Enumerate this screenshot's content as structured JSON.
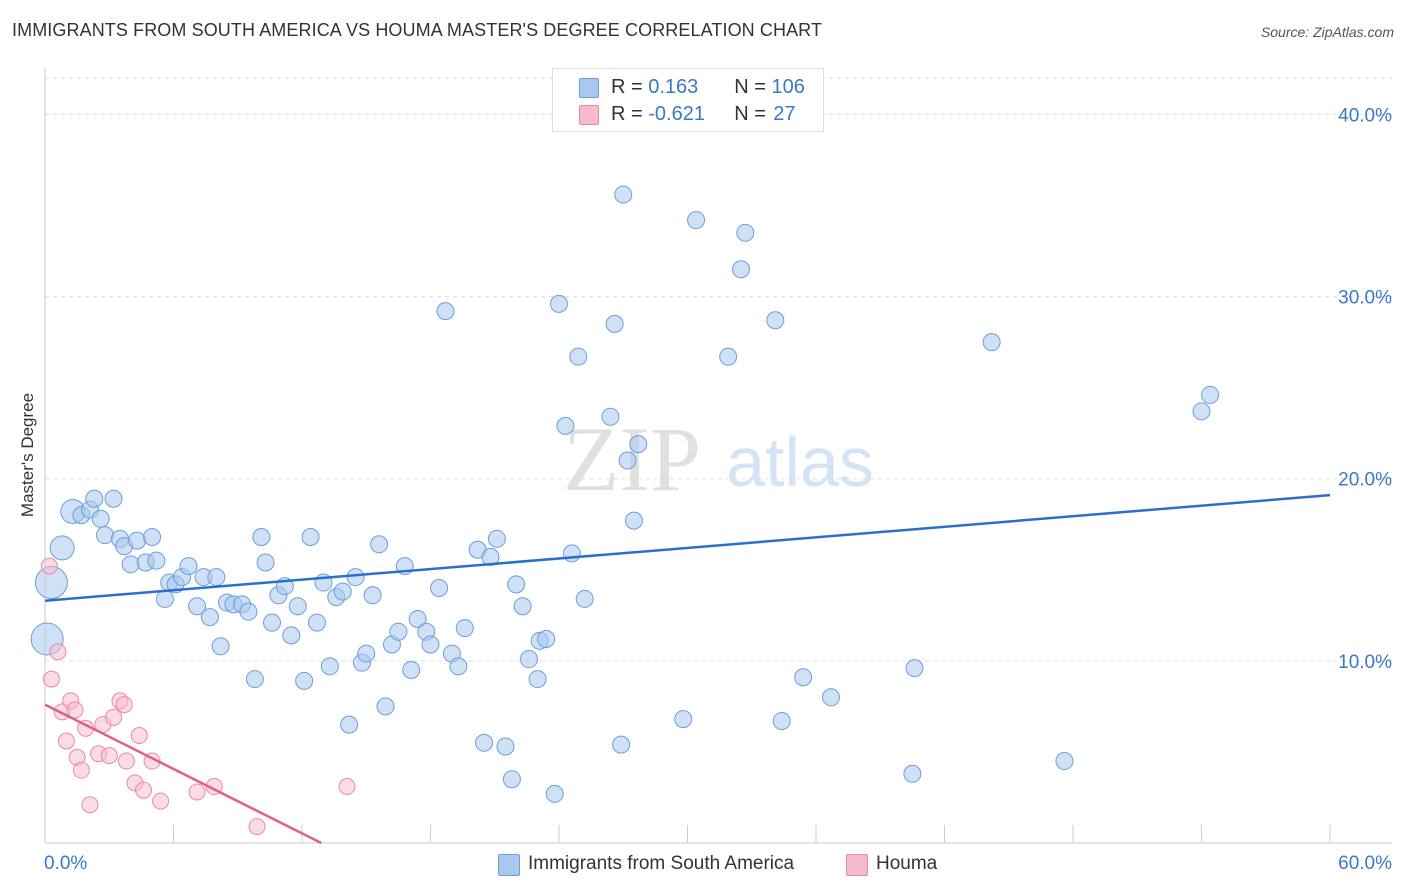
{
  "title": "IMMIGRANTS FROM SOUTH AMERICA VS HOUMA MASTER'S DEGREE CORRELATION CHART",
  "source": "Source: ZipAtlas.com",
  "watermark": "ZIPatlas",
  "legend": [
    {
      "r_label": "R = ",
      "r_value": "0.163",
      "n_label": "N = ",
      "n_value": "106"
    },
    {
      "r_label": "R = ",
      "r_value": "-0.621",
      "n_label": "N = ",
      "n_value": "27"
    }
  ],
  "colors": {
    "blue_fill": "#a9c8ef",
    "blue_stroke": "#6a9fdc",
    "blue_line": "#2a6fcf",
    "pink_fill": "#f7b9cc",
    "pink_stroke": "#e88aa8",
    "pink_line": "#e0608c",
    "axis_text": "#3a78c8",
    "grid": "#dddddd"
  },
  "chart_data": {
    "type": "scatter",
    "title": "IMMIGRANTS FROM SOUTH AMERICA VS HOUMA MASTER'S DEGREE CORRELATION CHART",
    "xlabel": "",
    "ylabel": "Master's Degree",
    "xlim": [
      0,
      60
    ],
    "ylim": [
      0,
      42
    ],
    "x_tick_labels": [
      "0.0%",
      "60.0%"
    ],
    "y_ticks": [
      10,
      20,
      30,
      40
    ],
    "y_tick_labels": [
      "10.0%",
      "20.0%",
      "30.0%",
      "40.0%"
    ],
    "grid": "horizontal dashed",
    "legend_position": "top-center",
    "series": [
      {
        "name": "Immigrants from South America",
        "R": 0.163,
        "N": 106,
        "trend": {
          "x": [
            0,
            60
          ],
          "y": [
            13.3,
            19.1
          ]
        },
        "points": [
          [
            0.3,
            14.3,
            3
          ],
          [
            0.1,
            11.2,
            3
          ],
          [
            0.8,
            16.2,
            2
          ],
          [
            1.3,
            18.2,
            2
          ],
          [
            1.7,
            18.0,
            1
          ],
          [
            2.1,
            18.3,
            1
          ],
          [
            2.3,
            18.9,
            1
          ],
          [
            2.6,
            17.8,
            1
          ],
          [
            2.8,
            16.9,
            1
          ],
          [
            3.2,
            18.9,
            1
          ],
          [
            3.5,
            16.7,
            1
          ],
          [
            3.7,
            16.3,
            1
          ],
          [
            4.0,
            15.3,
            1
          ],
          [
            4.3,
            16.6,
            1
          ],
          [
            4.7,
            15.4,
            1
          ],
          [
            5.0,
            16.8,
            1
          ],
          [
            5.2,
            15.5,
            1
          ],
          [
            5.6,
            13.4,
            1
          ],
          [
            5.8,
            14.3,
            1
          ],
          [
            6.1,
            14.2,
            1
          ],
          [
            6.4,
            14.6,
            1
          ],
          [
            6.7,
            15.2,
            1
          ],
          [
            7.1,
            13.0,
            1
          ],
          [
            7.4,
            14.6,
            1
          ],
          [
            7.7,
            12.4,
            1
          ],
          [
            8.0,
            14.6,
            1
          ],
          [
            8.2,
            10.8,
            1
          ],
          [
            8.5,
            13.2,
            1
          ],
          [
            8.8,
            13.1,
            1
          ],
          [
            9.2,
            13.1,
            1
          ],
          [
            9.5,
            12.7,
            1
          ],
          [
            9.8,
            9.0,
            1
          ],
          [
            10.1,
            16.8,
            1
          ],
          [
            10.3,
            15.4,
            1
          ],
          [
            10.6,
            12.1,
            1
          ],
          [
            10.9,
            13.6,
            1
          ],
          [
            11.2,
            14.1,
            1
          ],
          [
            11.5,
            11.4,
            1
          ],
          [
            11.8,
            13.0,
            1
          ],
          [
            12.1,
            8.9,
            1
          ],
          [
            12.4,
            16.8,
            1
          ],
          [
            12.7,
            12.1,
            1
          ],
          [
            13.0,
            14.3,
            1
          ],
          [
            13.3,
            9.7,
            1
          ],
          [
            13.6,
            13.5,
            1
          ],
          [
            13.9,
            13.8,
            1
          ],
          [
            14.2,
            6.5,
            1
          ],
          [
            14.5,
            14.6,
            1
          ],
          [
            14.8,
            9.9,
            1
          ],
          [
            15.0,
            10.4,
            1
          ],
          [
            15.3,
            13.6,
            1
          ],
          [
            15.6,
            16.4,
            1
          ],
          [
            15.9,
            7.5,
            1
          ],
          [
            16.2,
            10.9,
            1
          ],
          [
            16.5,
            11.6,
            1
          ],
          [
            16.8,
            15.2,
            1
          ],
          [
            17.1,
            9.5,
            1
          ],
          [
            17.4,
            12.3,
            1
          ],
          [
            17.8,
            11.6,
            1
          ],
          [
            18.0,
            10.9,
            1
          ],
          [
            18.4,
            14.0,
            1
          ],
          [
            18.7,
            29.2,
            1
          ],
          [
            19.0,
            10.4,
            1
          ],
          [
            19.3,
            9.7,
            1
          ],
          [
            19.6,
            11.8,
            1
          ],
          [
            20.2,
            16.1,
            1
          ],
          [
            20.5,
            5.5,
            1
          ],
          [
            20.8,
            15.7,
            1
          ],
          [
            21.1,
            16.7,
            1
          ],
          [
            21.5,
            5.3,
            1
          ],
          [
            21.8,
            3.5,
            1
          ],
          [
            22.0,
            14.2,
            1
          ],
          [
            22.3,
            13.0,
            1
          ],
          [
            22.6,
            10.1,
            1
          ],
          [
            23.0,
            9.0,
            1
          ],
          [
            23.1,
            11.1,
            1
          ],
          [
            23.4,
            11.2,
            1
          ],
          [
            23.8,
            2.7,
            1
          ],
          [
            24.0,
            29.6,
            1
          ],
          [
            24.3,
            22.9,
            1
          ],
          [
            24.6,
            15.9,
            1
          ],
          [
            24.9,
            26.7,
            1
          ],
          [
            25.2,
            13.4,
            1
          ],
          [
            26.4,
            23.4,
            1
          ],
          [
            26.6,
            28.5,
            1
          ],
          [
            26.9,
            5.4,
            1
          ],
          [
            27.0,
            35.6,
            1
          ],
          [
            27.2,
            21.0,
            1
          ],
          [
            27.5,
            17.7,
            1
          ],
          [
            27.7,
            21.9,
            1
          ],
          [
            29.8,
            6.8,
            1
          ],
          [
            30.4,
            34.2,
            1
          ],
          [
            31.9,
            26.7,
            1
          ],
          [
            32.5,
            31.5,
            1
          ],
          [
            32.7,
            33.5,
            1
          ],
          [
            34.1,
            28.7,
            1
          ],
          [
            34.4,
            6.7,
            1
          ],
          [
            35.4,
            9.1,
            1
          ],
          [
            36.7,
            8.0,
            1
          ],
          [
            40.5,
            3.8,
            1
          ],
          [
            40.6,
            9.6,
            1
          ],
          [
            44.2,
            27.5,
            1
          ],
          [
            47.6,
            4.5,
            1
          ],
          [
            54.0,
            23.7,
            1
          ],
          [
            54.4,
            24.6,
            1
          ]
        ]
      },
      {
        "name": "Houma",
        "R": -0.621,
        "N": 27,
        "trend": {
          "x": [
            0,
            12.9
          ],
          "y": [
            7.6,
            0
          ]
        },
        "points": [
          [
            0.2,
            15.2
          ],
          [
            0.3,
            9.0
          ],
          [
            0.6,
            10.5
          ],
          [
            0.8,
            7.2
          ],
          [
            1.0,
            5.6
          ],
          [
            1.2,
            7.8
          ],
          [
            1.4,
            7.3
          ],
          [
            1.5,
            4.7
          ],
          [
            1.7,
            4.0
          ],
          [
            1.9,
            6.3
          ],
          [
            2.1,
            2.1
          ],
          [
            2.5,
            4.9
          ],
          [
            2.7,
            6.5
          ],
          [
            3.0,
            4.8
          ],
          [
            3.2,
            6.9
          ],
          [
            3.5,
            7.8
          ],
          [
            3.7,
            7.6
          ],
          [
            3.8,
            4.5
          ],
          [
            4.2,
            3.3
          ],
          [
            4.4,
            5.9
          ],
          [
            4.6,
            2.9
          ],
          [
            5.0,
            4.5
          ],
          [
            5.4,
            2.3
          ],
          [
            7.1,
            2.8
          ],
          [
            7.9,
            3.1
          ],
          [
            9.9,
            0.9
          ],
          [
            14.1,
            3.1
          ]
        ]
      }
    ]
  },
  "bottom_legend": [
    "Immigrants from South America",
    "Houma"
  ],
  "axis": {
    "x_left": "0.0%",
    "x_right": "60.0%",
    "ylabel": "Master's Degree"
  }
}
